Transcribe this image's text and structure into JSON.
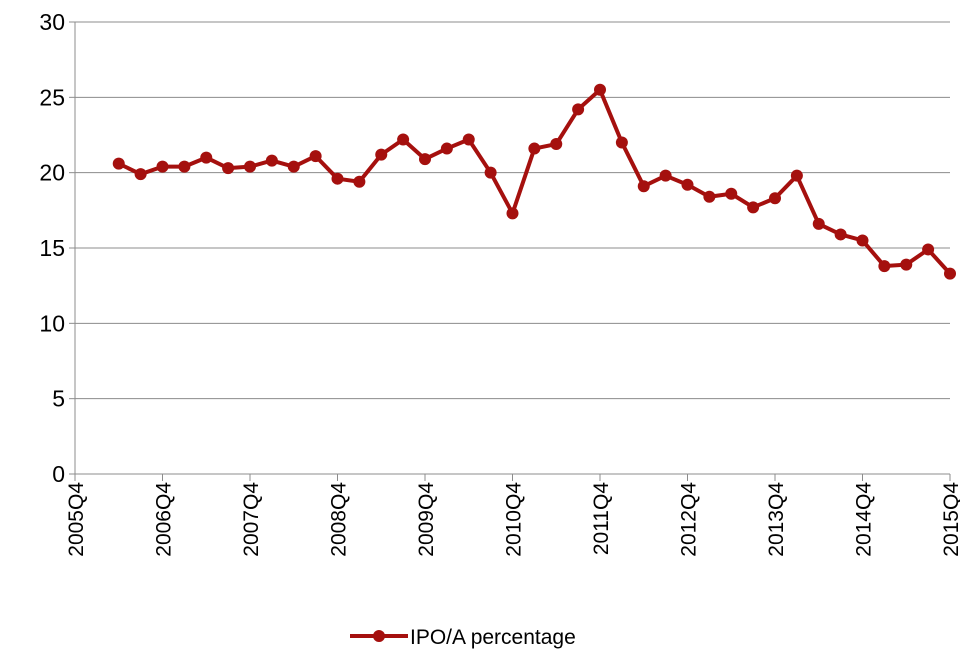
{
  "chart_data": {
    "type": "line",
    "categories": [
      "2005Q4",
      null,
      null,
      null,
      "2006Q4",
      null,
      null,
      null,
      "2007Q4",
      null,
      null,
      null,
      "2008Q4",
      null,
      null,
      null,
      "2009Q4",
      null,
      null,
      null,
      "2010Q4",
      null,
      null,
      null,
      "2011Q4",
      null,
      null,
      null,
      "2012Q4",
      null,
      null,
      null,
      "2013Q4",
      null,
      null,
      null,
      "2014Q4",
      null,
      null,
      null,
      "2015Q4"
    ],
    "series": [
      {
        "name": "IPO/A percentage",
        "color": "#a5100e",
        "values": [
          null,
          null,
          20.6,
          19.9,
          20.4,
          20.4,
          21.0,
          20.3,
          20.4,
          20.8,
          20.4,
          21.1,
          19.6,
          19.4,
          21.2,
          22.2,
          20.9,
          21.6,
          22.2,
          20.0,
          17.3,
          21.6,
          21.9,
          24.2,
          25.5,
          22.0,
          19.1,
          19.8,
          19.2,
          18.4,
          18.6,
          17.7,
          18.3,
          19.8,
          16.6,
          15.9,
          15.5,
          13.8,
          13.9,
          14.9,
          13.3
        ]
      }
    ],
    "ylim": [
      0,
      30
    ],
    "yticks": [
      0,
      5,
      10,
      15,
      20,
      25,
      30
    ],
    "grid": true,
    "legend": "bottom"
  }
}
